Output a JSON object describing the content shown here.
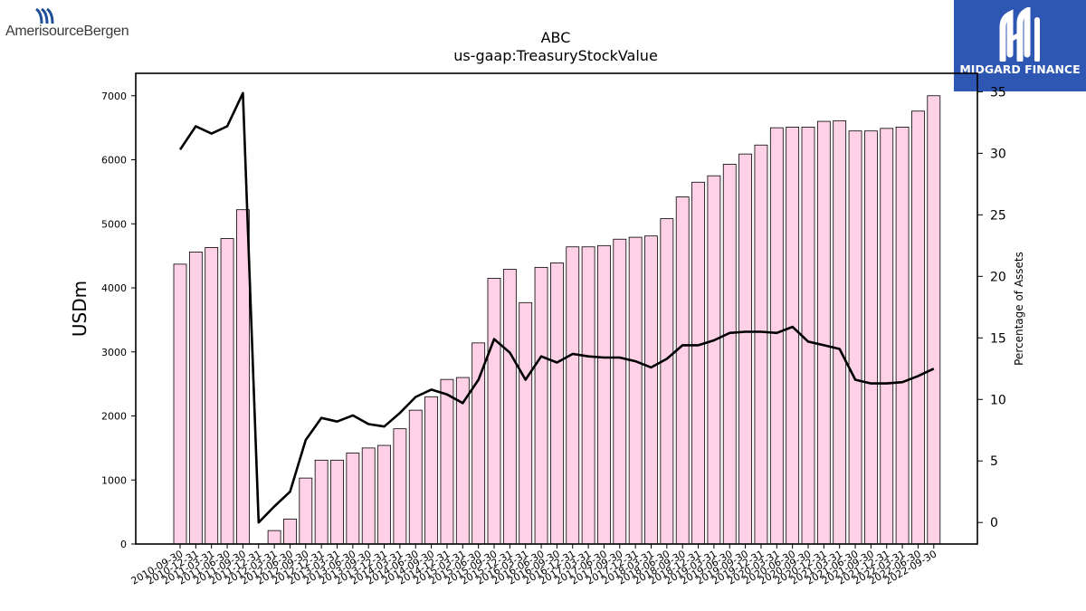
{
  "branding": {
    "left_logo": {
      "text": "AmerisourceBergen",
      "icon": "amerisourcebergen-logo-icon",
      "color": "#1f4e9a"
    },
    "right_logo": {
      "text": "MIDGARD FINANCE",
      "icon": "midgard-logo-icon",
      "background": "#2d57b3"
    }
  },
  "chart_data": {
    "type": "bar",
    "title": "ABC",
    "subtitle": "us-gaap:TreasuryStockValue",
    "ylabel": "USDm",
    "y2label": "Percentage of Assets",
    "ylim": [
      0,
      7350
    ],
    "y2lim": [
      -1.75,
      36.5
    ],
    "yticks": [
      0,
      1000,
      2000,
      3000,
      4000,
      5000,
      6000,
      7000
    ],
    "y2ticks": [
      0,
      5,
      10,
      15,
      20,
      25,
      30,
      35
    ],
    "bar_fill": "#ffd1e6",
    "line_color": "#000000",
    "grid": false,
    "categories": [
      "2010-09-30",
      "2010-12-31",
      "2011-03-31",
      "2011-06-30",
      "2011-09-30",
      "2011-12-31",
      "2012-03-31",
      "2012-06-30",
      "2012-09-30",
      "2012-12-31",
      "2013-03-31",
      "2013-06-30",
      "2013-09-30",
      "2013-12-31",
      "2014-03-31",
      "2014-06-30",
      "2014-09-30",
      "2014-12-31",
      "2015-03-31",
      "2015-06-30",
      "2015-09-30",
      "2015-12-31",
      "2016-03-31",
      "2016-06-30",
      "2016-09-30",
      "2016-12-31",
      "2017-03-31",
      "2017-06-30",
      "2017-09-30",
      "2017-12-31",
      "2018-03-31",
      "2018-06-30",
      "2018-09-30",
      "2018-12-31",
      "2019-03-31",
      "2019-06-30",
      "2019-09-30",
      "2019-12-31",
      "2020-03-31",
      "2020-06-30",
      "2020-09-30",
      "2020-12-31",
      "2021-03-31",
      "2021-06-30",
      "2021-09-30",
      "2021-12-31",
      "2022-03-31",
      "2022-06-30",
      "2022-09-30"
    ],
    "series": [
      {
        "axis": "left",
        "kind": "bar",
        "values": [
          4370,
          4560,
          4630,
          4770,
          5220,
          0,
          210,
          390,
          1030,
          1310,
          1310,
          1420,
          1500,
          1540,
          1800,
          2090,
          2300,
          2570,
          2600,
          3140,
          4150,
          4290,
          3770,
          4320,
          4390,
          4640,
          4640,
          4660,
          4760,
          4790,
          4810,
          5080,
          5420,
          5650,
          5750,
          5930,
          6090,
          6230,
          6500,
          6510,
          6510,
          6600,
          6610,
          6450,
          6450,
          6490,
          6510,
          6760,
          7000
        ]
      },
      {
        "axis": "right",
        "kind": "line",
        "values": [
          30.3,
          32.2,
          31.6,
          32.2,
          34.9,
          0.0,
          1.3,
          2.5,
          6.7,
          8.5,
          8.2,
          8.7,
          8.0,
          7.8,
          8.9,
          10.2,
          10.8,
          10.4,
          9.7,
          11.6,
          14.9,
          13.8,
          11.6,
          13.5,
          13.0,
          13.7,
          13.5,
          13.4,
          13.4,
          13.1,
          12.6,
          13.3,
          14.4,
          14.4,
          14.8,
          15.4,
          15.5,
          15.5,
          15.4,
          15.9,
          14.7,
          14.4,
          14.1,
          11.6,
          11.3,
          11.3,
          11.4,
          11.9,
          12.5
        ]
      }
    ]
  }
}
